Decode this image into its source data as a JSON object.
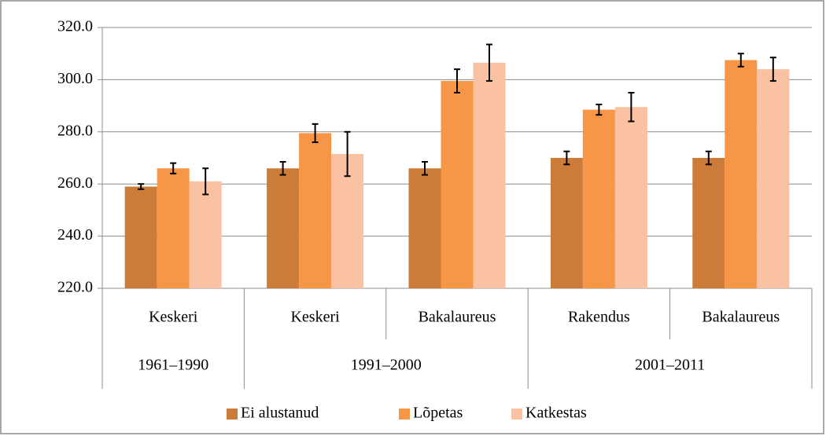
{
  "chart_data": {
    "type": "bar",
    "groups": [
      {
        "name": "1961–1990",
        "categories": [
          "Keskeri"
        ]
      },
      {
        "name": "1991–2000",
        "categories": [
          "Keskeri",
          "Bakalaureus"
        ]
      },
      {
        "name": "2001–2011",
        "categories": [
          "Rakendus",
          "Bakalaureus"
        ]
      }
    ],
    "series": [
      {
        "name": "Ei alustanud",
        "color": "#cd7b38",
        "values": [
          259,
          266,
          266,
          270,
          270
        ],
        "errors": [
          1,
          2.5,
          2.5,
          2.5,
          2.5
        ]
      },
      {
        "name": "Lõpetas",
        "color": "#f79646",
        "values": [
          266,
          279.5,
          299.5,
          288.5,
          307.5
        ],
        "errors": [
          2,
          3.5,
          4.5,
          2,
          2.5
        ]
      },
      {
        "name": "Katkestas",
        "color": "#fac1a3",
        "values": [
          261,
          271.5,
          306.5,
          289.5,
          304
        ],
        "errors": [
          5,
          8.5,
          7,
          5.5,
          4.5
        ]
      }
    ],
    "ylim": [
      220,
      320
    ],
    "yticks": [
      {
        "value": 220,
        "label": "220.0"
      },
      {
        "value": 240,
        "label": "240.0"
      },
      {
        "value": 260,
        "label": "260.0"
      },
      {
        "value": 280,
        "label": "280.0"
      },
      {
        "value": 300,
        "label": "300.0"
      },
      {
        "value": 320,
        "label": "320.0"
      }
    ],
    "grid": true,
    "legend": "bottom"
  }
}
